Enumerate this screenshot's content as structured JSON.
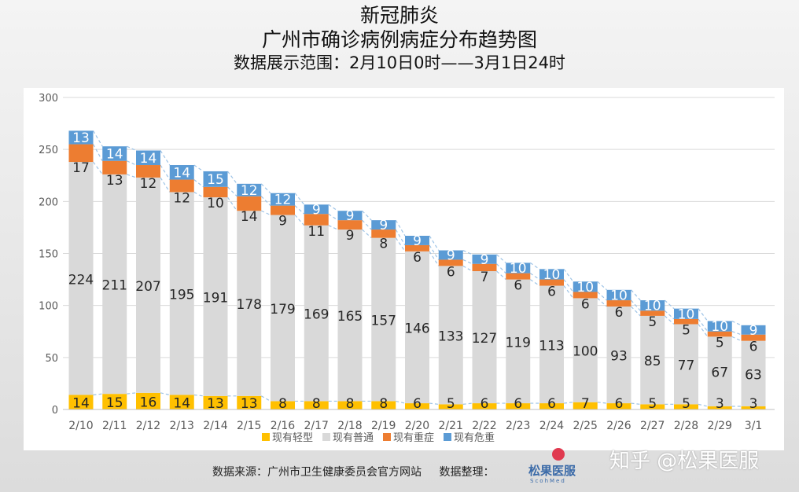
{
  "title": {
    "line1": "新冠肺炎",
    "line2": "广州市确诊病例病症分布趋势图",
    "line3": "数据展示范围：2月10日0时——3月1日24时"
  },
  "footer": {
    "source": "数据来源：广州市卫生健康委员会官方网站",
    "organizer": "数据整理：",
    "logo_text": "松果医服",
    "logo_sub": "ScohMed"
  },
  "watermark": "知乎 @松果医服",
  "chart_data": {
    "type": "bar",
    "stacked": true,
    "categories": [
      "2/10",
      "2/11",
      "2/12",
      "2/13",
      "2/14",
      "2/15",
      "2/16",
      "2/17",
      "2/18",
      "2/19",
      "2/20",
      "2/21",
      "2/22",
      "2/23",
      "2/24",
      "2/25",
      "2/26",
      "2/27",
      "2/28",
      "2/29",
      "3/1"
    ],
    "series": [
      {
        "name": "现有轻型",
        "color": "#FFC000",
        "values": [
          14,
          15,
          16,
          14,
          13,
          13,
          8,
          8,
          8,
          8,
          6,
          5,
          6,
          6,
          6,
          7,
          6,
          5,
          5,
          3,
          3
        ]
      },
      {
        "name": "现有普通",
        "color": "#D9D9D9",
        "values": [
          224,
          211,
          207,
          195,
          191,
          178,
          179,
          169,
          165,
          157,
          146,
          133,
          127,
          119,
          113,
          100,
          93,
          85,
          77,
          67,
          63
        ]
      },
      {
        "name": "现有重症",
        "color": "#ED7D31",
        "values": [
          17,
          13,
          12,
          12,
          10,
          14,
          9,
          11,
          9,
          8,
          6,
          6,
          7,
          6,
          6,
          6,
          6,
          5,
          5,
          5,
          6
        ]
      },
      {
        "name": "现有危重",
        "color": "#5B9BD5",
        "values": [
          13,
          14,
          14,
          14,
          15,
          12,
          12,
          9,
          9,
          9,
          9,
          9,
          9,
          10,
          10,
          10,
          10,
          10,
          10,
          10,
          9
        ]
      }
    ],
    "ylim": [
      0,
      300
    ],
    "yticks": [
      0,
      50,
      100,
      150,
      200,
      250,
      300
    ],
    "grid": true,
    "legend": "bottom",
    "series_lines": true
  }
}
